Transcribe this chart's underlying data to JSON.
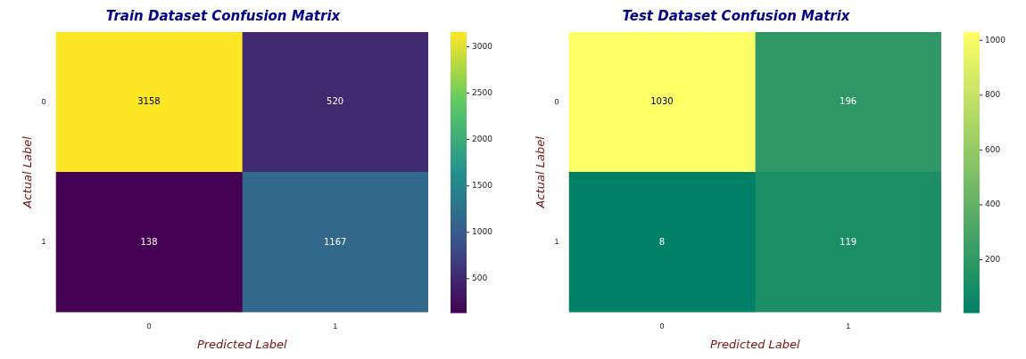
{
  "chart_data": [
    {
      "type": "heatmap",
      "title": "Train Dataset Confusion Matrix",
      "xlabel": "Predicted Label",
      "ylabel": "Actual Label",
      "categories": [
        "0",
        "1"
      ],
      "y_categories": [
        "0",
        "1"
      ],
      "cells": [
        [
          3158,
          520
        ],
        [
          138,
          1167
        ]
      ],
      "clim": [
        138,
        3158
      ],
      "cticks": [
        500,
        1000,
        1500,
        2000,
        2500,
        3000
      ],
      "colors": [
        "#440154",
        "#3b528b",
        "#21918c",
        "#5ec962",
        "#fde725"
      ],
      "data_labels": true
    },
    {
      "type": "heatmap",
      "title": "Test Dataset Confusion Matrix",
      "xlabel": "Predicted Label",
      "ylabel": "Actual Label",
      "categories": [
        "0",
        "1"
      ],
      "y_categories": [
        "0",
        "1"
      ],
      "cells": [
        [
          1030,
          196
        ],
        [
          8,
          119
        ]
      ],
      "clim": [
        8,
        1030
      ],
      "cticks": [
        200,
        400,
        600,
        800,
        1000
      ],
      "colors": [
        "#008066",
        "#ffff66"
      ],
      "data_labels": true
    }
  ]
}
